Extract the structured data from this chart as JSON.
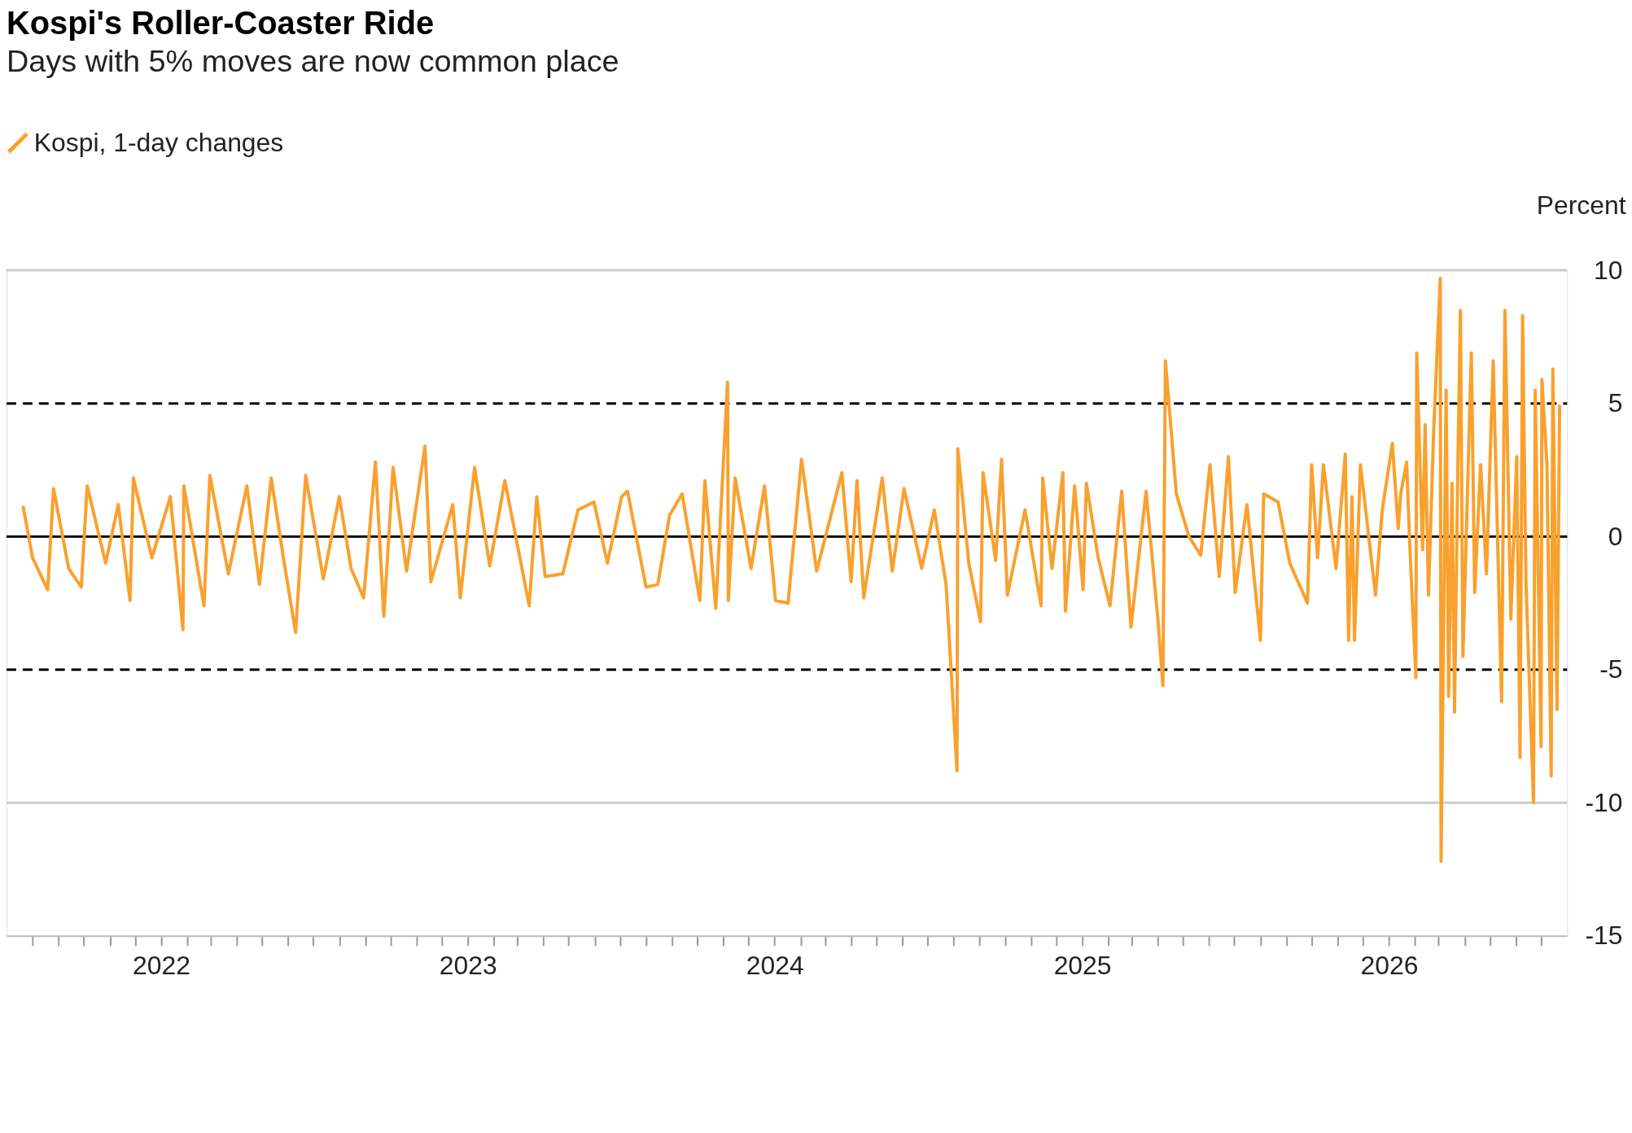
{
  "chart_data": {
    "type": "line",
    "title": "Kospi's Roller-Coaster Ride",
    "subtitle": "Days with 5% moves are now common place",
    "ylabel": "Percent",
    "series": [
      {
        "name": "Kospi, 1-day changes",
        "color": "#f9a12e",
        "x": [
          "2021-07-21",
          "2021-08-01",
          "2021-08-19",
          "2021-08-26",
          "2021-09-13",
          "2021-09-28",
          "2021-10-05",
          "2021-10-27",
          "2021-11-11",
          "2021-11-25",
          "2021-11-29",
          "2021-12-21",
          "2022-01-12",
          "2022-01-27",
          "2022-01-28",
          "2022-02-21",
          "2022-02-28",
          "2022-03-22",
          "2022-04-13",
          "2022-04-28",
          "2022-05-12",
          "2022-05-27",
          "2022-06-10",
          "2022-06-22",
          "2022-07-13",
          "2022-08-01",
          "2022-08-15",
          "2022-08-30",
          "2022-09-13",
          "2022-09-23",
          "2022-10-04",
          "2022-10-20",
          "2022-11-11",
          "2022-11-18",
          "2022-12-14",
          "2022-12-23",
          "2023-01-09",
          "2023-01-27",
          "2023-02-14",
          "2023-03-15",
          "2023-03-24",
          "2023-04-03",
          "2023-04-24",
          "2023-05-12",
          "2023-05-31",
          "2023-06-16",
          "2023-07-03",
          "2023-07-10",
          "2023-08-01",
          "2023-08-15",
          "2023-08-29",
          "2023-09-13",
          "2023-10-04",
          "2023-10-10",
          "2023-10-23",
          "2023-11-06",
          "2023-11-07",
          "2023-11-15",
          "2023-12-04",
          "2023-12-20",
          "2024-01-02",
          "2024-01-17",
          "2024-02-02",
          "2024-02-20",
          "2024-03-21",
          "2024-04-01",
          "2024-04-08",
          "2024-04-16",
          "2024-05-08",
          "2024-05-20",
          "2024-06-03",
          "2024-06-24",
          "2024-07-09",
          "2024-07-23",
          "2024-08-05",
          "2024-08-06",
          "2024-08-19",
          "2024-09-02",
          "2024-09-05",
          "2024-09-20",
          "2024-09-27",
          "2024-10-04",
          "2024-10-25",
          "2024-11-13",
          "2024-11-15",
          "2024-11-26",
          "2024-12-09",
          "2024-12-12",
          "2024-12-23",
          "2025-01-02",
          "2025-01-06",
          "2025-01-20",
          "2025-02-03",
          "2025-02-17",
          "2025-02-28",
          "2025-03-18",
          "2025-04-01",
          "2025-04-07",
          "2025-04-10",
          "2025-04-23",
          "2025-05-08",
          "2025-05-22",
          "2025-06-02",
          "2025-06-13",
          "2025-06-24",
          "2025-07-02",
          "2025-07-16",
          "2025-08-01",
          "2025-08-05",
          "2025-08-22",
          "2025-09-05",
          "2025-09-26",
          "2025-10-01",
          "2025-10-08",
          "2025-10-15",
          "2025-10-30",
          "2025-11-10",
          "2025-11-14",
          "2025-11-18",
          "2025-11-21",
          "2025-11-28",
          "2025-12-16",
          "2025-12-24",
          "2026-01-05",
          "2026-01-12",
          "2026-01-15",
          "2026-01-22",
          "2026-01-26",
          "2026-02-02",
          "2026-02-03",
          "2026-02-10",
          "2026-02-13",
          "2026-02-17",
          "2026-02-23",
          "2026-03-03",
          "2026-03-04",
          "2026-03-10",
          "2026-03-13",
          "2026-03-17",
          "2026-03-20",
          "2026-03-24",
          "2026-03-27",
          "2026-03-30",
          "2026-04-09",
          "2026-04-13",
          "2026-04-20",
          "2026-04-27",
          "2026-05-05",
          "2026-05-15",
          "2026-05-19",
          "2026-05-26",
          "2026-06-02",
          "2026-06-06",
          "2026-06-09",
          "2026-06-13",
          "2026-06-22",
          "2026-06-24",
          "2026-07-01",
          "2026-07-02",
          "2026-07-08",
          "2026-07-13",
          "2026-07-15",
          "2026-07-20",
          "2026-07-23"
        ],
        "values": [
          1.1,
          -0.8,
          -2.0,
          1.8,
          -1.2,
          -1.9,
          1.9,
          -1.0,
          1.2,
          -2.4,
          2.2,
          -0.8,
          1.5,
          -3.5,
          1.9,
          -2.6,
          2.3,
          -1.4,
          1.9,
          -1.8,
          2.2,
          -0.9,
          -3.6,
          2.3,
          -1.6,
          1.5,
          -1.2,
          -2.3,
          2.8,
          -3.0,
          2.6,
          -1.3,
          3.4,
          -1.7,
          1.2,
          -2.3,
          2.6,
          -1.1,
          2.1,
          -2.6,
          1.5,
          -1.5,
          -1.4,
          1.0,
          1.3,
          -1.0,
          1.5,
          1.7,
          -1.9,
          -1.8,
          0.8,
          1.6,
          -2.4,
          2.1,
          -2.7,
          5.8,
          -2.4,
          2.2,
          -1.2,
          1.9,
          -2.4,
          -2.5,
          2.9,
          -1.3,
          2.4,
          -1.7,
          2.1,
          -2.3,
          2.2,
          -1.3,
          1.8,
          -1.2,
          1.0,
          -1.8,
          -8.8,
          3.3,
          -1.0,
          -3.2,
          2.4,
          -0.9,
          2.9,
          -2.2,
          1.0,
          -2.6,
          2.2,
          -1.2,
          2.4,
          -2.8,
          1.9,
          -2.0,
          2.0,
          -0.8,
          -2.6,
          1.7,
          -3.4,
          1.7,
          -3.1,
          -5.6,
          6.6,
          1.6,
          0.0,
          -0.7,
          2.7,
          -1.5,
          3.0,
          -2.1,
          1.2,
          -3.9,
          1.6,
          1.3,
          -1.0,
          -2.5,
          2.7,
          -0.8,
          2.7,
          -1.2,
          3.1,
          -3.9,
          1.5,
          -3.9,
          2.7,
          -2.2,
          1.0,
          3.5,
          0.3,
          1.6,
          2.8,
          -0.5,
          -5.3,
          6.9,
          -0.5,
          4.2,
          -2.2,
          3.8,
          9.7,
          -12.2,
          5.5,
          -6.0,
          2.0,
          -6.6,
          2.8,
          8.5,
          -4.5,
          6.9,
          -2.1,
          2.7,
          -1.4,
          6.6,
          -6.2,
          8.5,
          -3.1,
          3.0,
          -8.3,
          8.3,
          -1.7,
          -10.0,
          5.5,
          -7.9,
          5.9,
          2.7,
          -9.0,
          6.3,
          -6.5,
          4.9
        ]
      }
    ],
    "xlim": [
      "2021-07-01",
      "2026-08-01"
    ],
    "xticks": [
      {
        "value": "2021-08",
        "label": null
      },
      {
        "value": "2021-09",
        "label": null
      },
      {
        "value": "2021-10",
        "label": null
      },
      {
        "value": "2021-11",
        "label": null
      },
      {
        "value": "2021-12",
        "label": null
      },
      {
        "value": "2022-01",
        "label": "2022"
      },
      {
        "value": "2022-02",
        "label": null
      },
      {
        "value": "2022-03",
        "label": null
      },
      {
        "value": "2022-04",
        "label": null
      },
      {
        "value": "2022-05",
        "label": null
      },
      {
        "value": "2022-06",
        "label": null
      },
      {
        "value": "2022-07",
        "label": null
      },
      {
        "value": "2022-08",
        "label": null
      },
      {
        "value": "2022-09",
        "label": null
      },
      {
        "value": "2022-10",
        "label": null
      },
      {
        "value": "2022-11",
        "label": null
      },
      {
        "value": "2022-12",
        "label": null
      },
      {
        "value": "2023-01",
        "label": "2023"
      },
      {
        "value": "2023-02",
        "label": null
      },
      {
        "value": "2023-03",
        "label": null
      },
      {
        "value": "2023-04",
        "label": null
      },
      {
        "value": "2023-05",
        "label": null
      },
      {
        "value": "2023-06",
        "label": null
      },
      {
        "value": "2023-07",
        "label": null
      },
      {
        "value": "2023-08",
        "label": null
      },
      {
        "value": "2023-09",
        "label": null
      },
      {
        "value": "2023-10",
        "label": null
      },
      {
        "value": "2023-11",
        "label": null
      },
      {
        "value": "2023-12",
        "label": null
      },
      {
        "value": "2024-01",
        "label": "2024"
      },
      {
        "value": "2024-02",
        "label": null
      },
      {
        "value": "2024-03",
        "label": null
      },
      {
        "value": "2024-04",
        "label": null
      },
      {
        "value": "2024-05",
        "label": null
      },
      {
        "value": "2024-06",
        "label": null
      },
      {
        "value": "2024-07",
        "label": null
      },
      {
        "value": "2024-08",
        "label": null
      },
      {
        "value": "2024-09",
        "label": null
      },
      {
        "value": "2024-10",
        "label": null
      },
      {
        "value": "2024-11",
        "label": null
      },
      {
        "value": "2024-12",
        "label": null
      },
      {
        "value": "2025-01",
        "label": "2025"
      },
      {
        "value": "2025-02",
        "label": null
      },
      {
        "value": "2025-03",
        "label": null
      },
      {
        "value": "2025-04",
        "label": null
      },
      {
        "value": "2025-05",
        "label": null
      },
      {
        "value": "2025-06",
        "label": null
      },
      {
        "value": "2025-07",
        "label": null
      },
      {
        "value": "2025-08",
        "label": null
      },
      {
        "value": "2025-09",
        "label": null
      },
      {
        "value": "2025-10",
        "label": null
      },
      {
        "value": "2025-11",
        "label": null
      },
      {
        "value": "2025-12",
        "label": null
      },
      {
        "value": "2026-01",
        "label": "2026"
      },
      {
        "value": "2026-02",
        "label": null
      },
      {
        "value": "2026-03",
        "label": null
      },
      {
        "value": "2026-04",
        "label": null
      },
      {
        "value": "2026-05",
        "label": null
      },
      {
        "value": "2026-06",
        "label": null
      },
      {
        "value": "2026-07",
        "label": null
      }
    ],
    "ylim": [
      -15,
      10
    ],
    "yticks": [
      -15,
      -10,
      -5,
      0,
      5,
      10
    ],
    "ref_lines": [
      {
        "axis": "y",
        "value": 5,
        "color": "#000000",
        "line_style": "dashed"
      },
      {
        "axis": "y",
        "value": -5,
        "color": "#000000",
        "line_style": "dashed"
      },
      {
        "axis": "y",
        "value": 0,
        "color": "#000000",
        "line_style": "solid"
      },
      {
        "axis": "y",
        "value": 10,
        "color": "#cccccc",
        "line_style": "solid"
      },
      {
        "axis": "y",
        "value": -10,
        "color": "#cccccc",
        "line_style": "solid"
      }
    ],
    "legend": "top left",
    "line_style": "solid",
    "marker": "none"
  }
}
